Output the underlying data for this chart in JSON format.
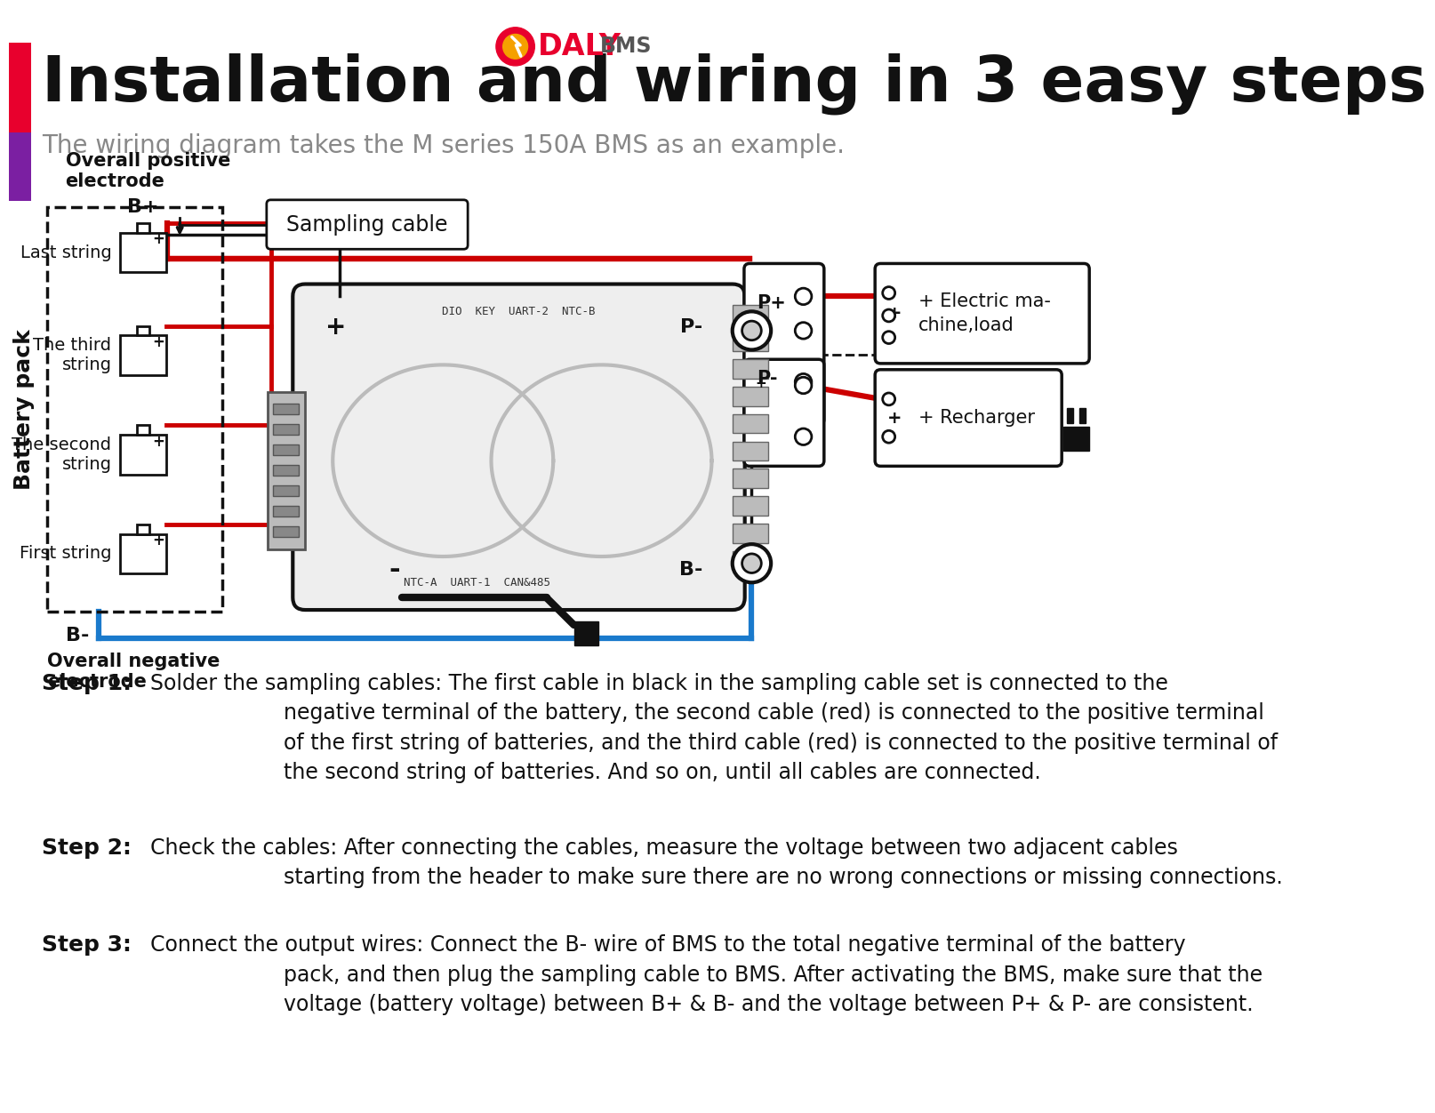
{
  "title": "Installation and wiring in 3 easy steps",
  "subtitle": "The wiring diagram takes the M series 150A BMS as an example.",
  "bg_color": "#ffffff",
  "step1_bold": "Step 1:",
  "step1_text": "Solder the sampling cables: The first cable in black in the sampling cable set is connected to the\n                    negative terminal of the battery, the second cable (red) is connected to the positive terminal\n                    of the first string of batteries, and the third cable (red) is connected to the positive terminal of\n                    the second string of batteries. And so on, until all cables are connected.",
  "step2_bold": "Step 2:",
  "step2_text": "Check the cables: After connecting the cables, measure the voltage between two adjacent cables\n                    starting from the header to make sure there are no wrong connections or missing connections.",
  "step3_bold": "Step 3:",
  "step3_text": "Connect the output wires: Connect the B- wire of BMS to the total negative terminal of the battery\n                    pack, and then plug the sampling cable to BMS. After activating the BMS, make sure that the\n                    voltage (battery voltage) between B+ & B- and the voltage between P+ & P- are consistent.",
  "sampling_cable_label": "Sampling cable",
  "overall_positive": "Overall positive\nelectrode",
  "overall_negative": "Overall negative\nelectrode",
  "bplus": "B+",
  "bminus": "B-",
  "pplus": "P+",
  "pminus": "P-",
  "battery_pack": "Battery pack",
  "last_string": "Last string",
  "third_string": "The third\nstring",
  "second_string": "The second\nstring",
  "first_string": "First string",
  "electric_load": "+ Electric ma-\nchine,load",
  "recharger": "+ Recharger",
  "wire_red": "#cc0000",
  "wire_blue": "#1a7acc",
  "wire_black": "#111111",
  "box_edge": "#111111",
  "text_color": "#111111",
  "gray_fill": "#e8e8e8",
  "daly_red": "#e8002d"
}
